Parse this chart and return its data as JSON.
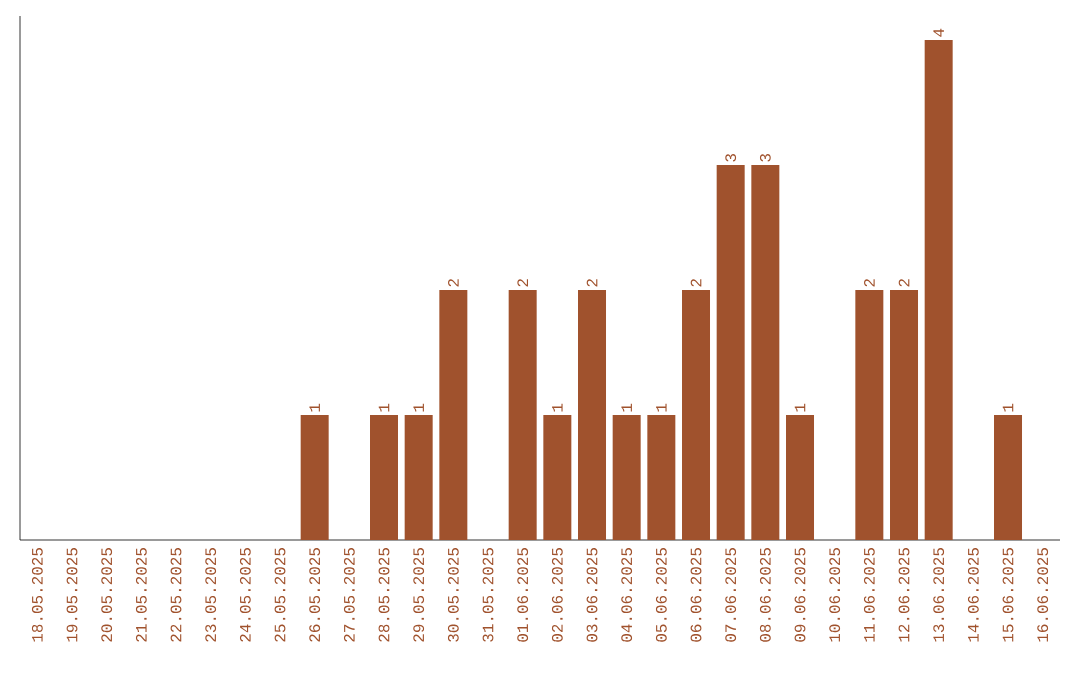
{
  "chart_data": {
    "type": "bar",
    "categories": [
      "18.05.2025",
      "19.05.2025",
      "20.05.2025",
      "21.05.2025",
      "22.05.2025",
      "23.05.2025",
      "24.05.2025",
      "25.05.2025",
      "26.05.2025",
      "27.05.2025",
      "28.05.2025",
      "29.05.2025",
      "30.05.2025",
      "31.05.2025",
      "01.06.2025",
      "02.06.2025",
      "03.06.2025",
      "04.06.2025",
      "05.06.2025",
      "06.06.2025",
      "07.06.2025",
      "08.06.2025",
      "09.06.2025",
      "10.06.2025",
      "11.06.2025",
      "12.06.2025",
      "13.06.2025",
      "14.06.2025",
      "15.06.2025",
      "16.06.2025"
    ],
    "values": [
      0,
      0,
      0,
      0,
      0,
      0,
      0,
      0,
      1,
      0,
      1,
      1,
      2,
      0,
      2,
      1,
      2,
      1,
      1,
      2,
      3,
      3,
      1,
      0,
      2,
      2,
      4,
      0,
      1,
      0
    ],
    "value_labels": [
      null,
      null,
      null,
      null,
      null,
      null,
      null,
      null,
      "1",
      null,
      "1",
      "1",
      "2",
      null,
      "2",
      "1",
      "2",
      "1",
      "1",
      "2",
      "3",
      "3",
      "1",
      null,
      "2",
      "2",
      "4",
      null,
      "1",
      null
    ],
    "color": "#a0522d",
    "tick_labels": "x"
  }
}
